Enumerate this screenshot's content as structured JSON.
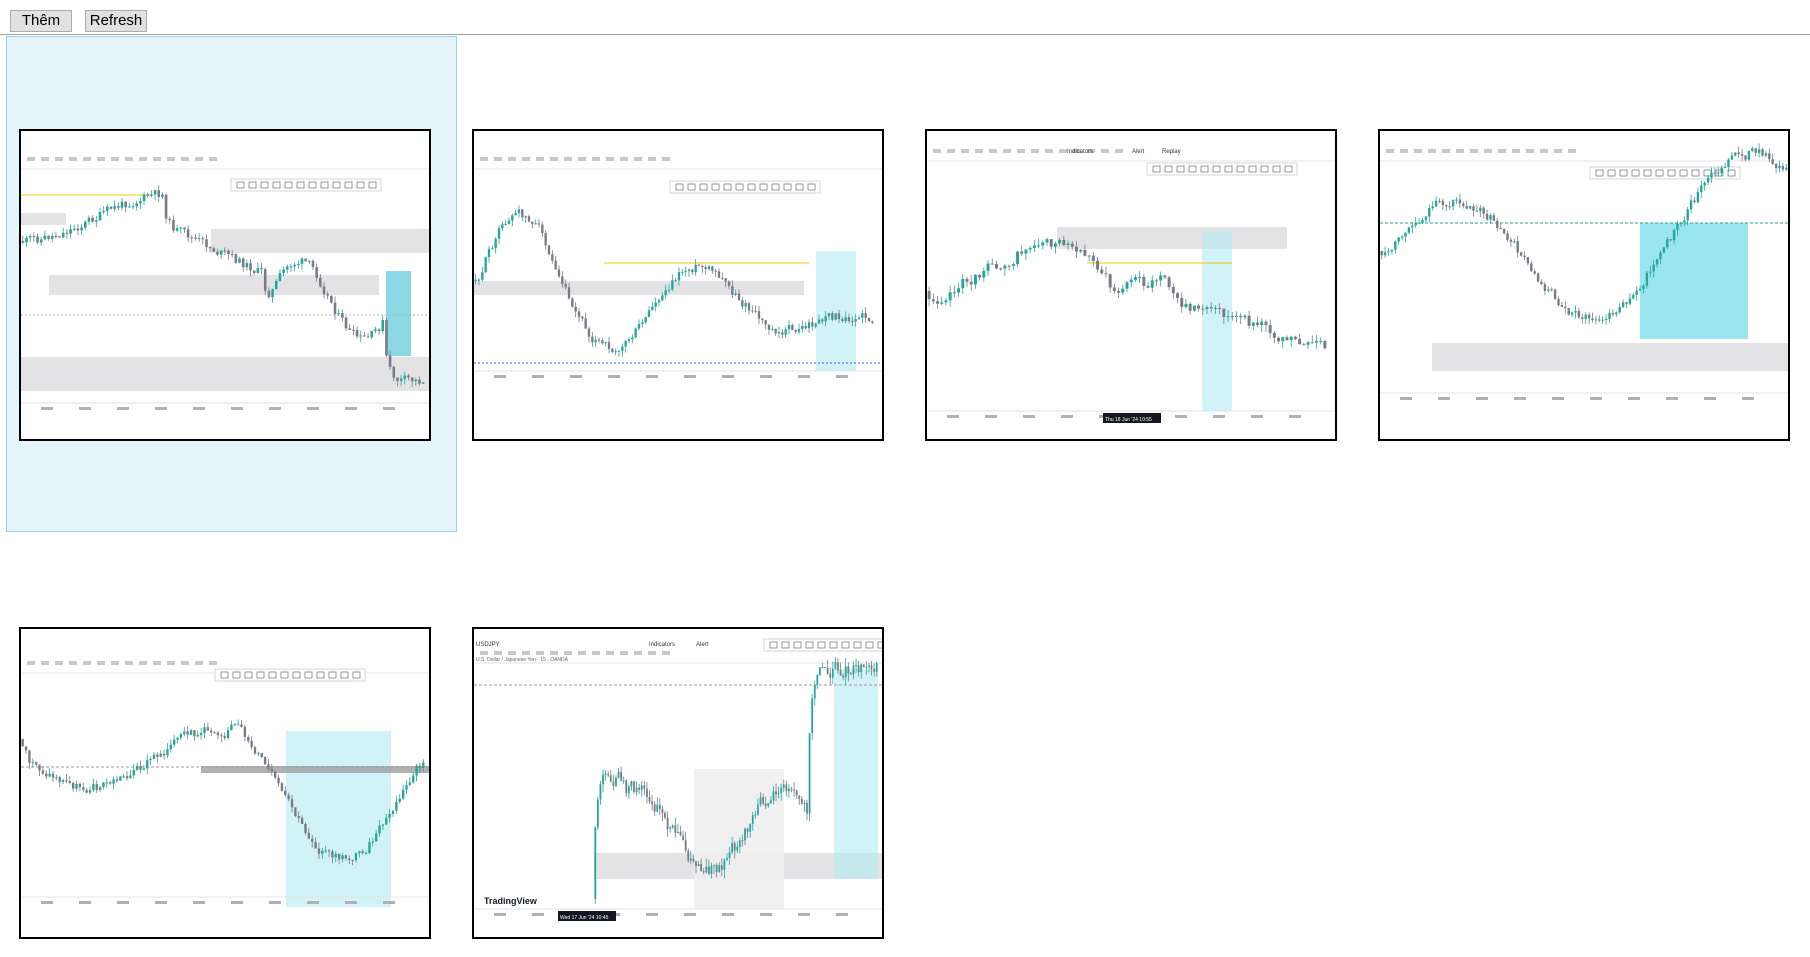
{
  "toolbar": {
    "add_label": "Thêm",
    "refresh_label": "Refresh"
  },
  "thumbnails": [
    {
      "name": "chart-thumbnail-1",
      "selected": true
    },
    {
      "name": "chart-thumbnail-2"
    },
    {
      "name": "chart-thumbnail-3",
      "text": "Indicators",
      "alert": "Alert",
      "replay": "Replay",
      "date": "Thu 18 Jun '24 10:55"
    },
    {
      "name": "chart-thumbnail-4"
    },
    {
      "name": "chart-thumbnail-5"
    },
    {
      "name": "chart-thumbnail-6",
      "symbol": "USDJPY",
      "indicators": "Indicators",
      "alert": "Alert",
      "title": "U.S. Dollar / Japanese Yen · 15 · OANDA",
      "brand": "TradingView",
      "date": "Wed 17 Jun '24 10:45"
    }
  ],
  "colors": {
    "up": "#26a69a",
    "down": "#787b86",
    "zone": "#e0e0e3",
    "highlight": "#b2ebf2",
    "selection_bg": "#e5f3fb",
    "selection_border": "#99d1f1"
  }
}
